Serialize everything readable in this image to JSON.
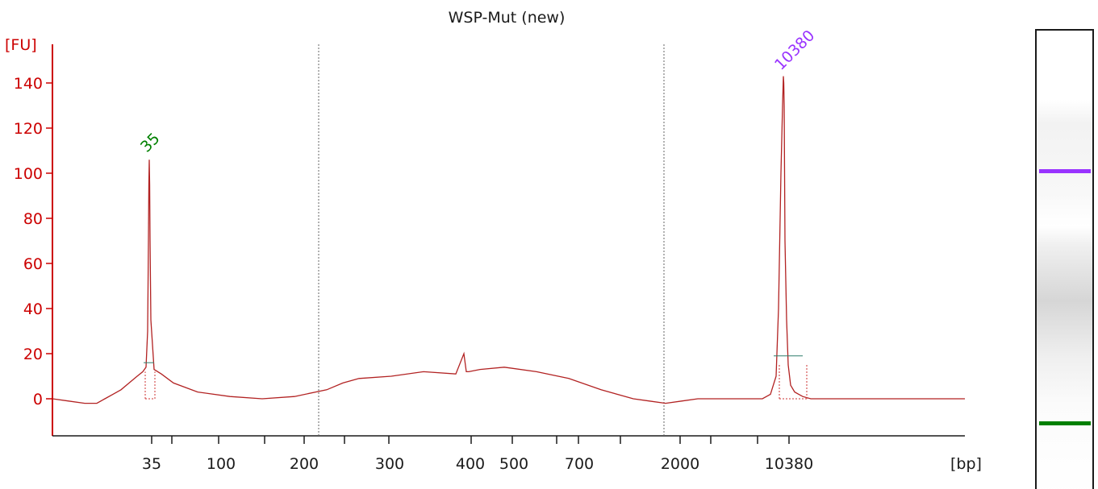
{
  "chart_data": {
    "type": "line",
    "title": "WSP-Mut (new)",
    "ylabel": "[FU]",
    "xlabel": "[bp]",
    "ylim": [
      -18,
      155
    ],
    "yticks": [
      0,
      20,
      40,
      60,
      80,
      100,
      120,
      140
    ],
    "xtick_labels": [
      "35",
      "100",
      "200",
      "300",
      "400",
      "500",
      "700",
      "2000",
      "10380"
    ],
    "peak_labels": [
      {
        "text": "35",
        "color": "#008000"
      },
      {
        "text": "10380",
        "color": "#9933ff"
      }
    ],
    "series": [
      {
        "color": "#b22222",
        "x": [
          0,
          20,
          40,
          55,
          65,
          75,
          85,
          95,
          105,
          112,
          116,
          118,
          119,
          119.5,
          120,
          120.5,
          121,
          122,
          126,
          135,
          150,
          180,
          220,
          260,
          300,
          340,
          360,
          380,
          420,
          460,
          500,
          510,
          513,
          514,
          516,
          530,
          560,
          600,
          640,
          680,
          720,
          740,
          760,
          780,
          800,
          830,
          860,
          880,
          890,
          897,
          900,
          903,
          905,
          906,
          906.5,
          907,
          907.5,
          908,
          910,
          912,
          915,
          920,
          925,
          930,
          940,
          960,
          1000,
          1060,
          1131
        ],
        "y": [
          0,
          -1,
          -2,
          -2,
          0,
          2,
          4,
          7,
          10,
          12,
          14,
          30,
          70,
          95,
          106,
          95,
          70,
          35,
          13,
          11,
          7,
          3,
          1,
          0,
          1,
          4,
          7,
          9,
          10,
          12,
          11,
          20,
          12,
          12,
          12,
          13,
          14,
          12,
          9,
          4,
          0,
          -1,
          -2,
          -1,
          0,
          0,
          0,
          0,
          2,
          10,
          40,
          100,
          130,
          143,
          140,
          130,
          100,
          70,
          35,
          15,
          6,
          3,
          2,
          1,
          0,
          0,
          0,
          0,
          0
        ]
      }
    ],
    "baseline_markers": [
      {
        "x1": 113,
        "x2": 126,
        "y": 16
      },
      {
        "x1": 894,
        "x2": 930,
        "y": 19
      }
    ],
    "dotted_markers": [
      {
        "x": 330
      },
      {
        "x": 758
      }
    ],
    "gel_lane": {
      "bands": [
        {
          "color": "#9933ff",
          "level": 101
        },
        {
          "color": "#008000",
          "level": -10
        }
      ]
    }
  }
}
